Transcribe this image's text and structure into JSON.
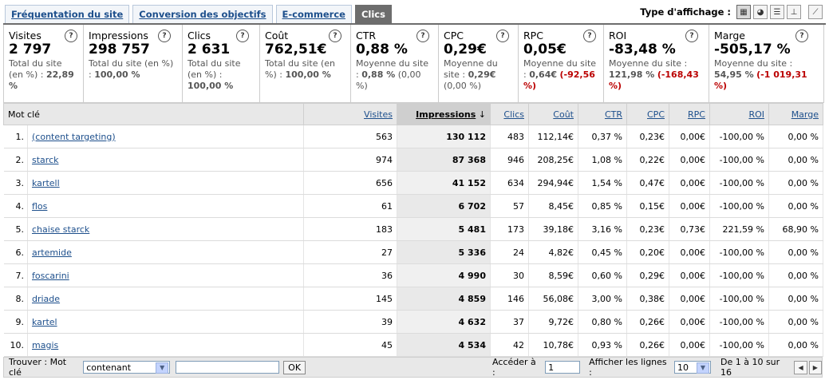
{
  "tabs": [
    {
      "label": "Fréquentation du site",
      "active": false
    },
    {
      "label": "Conversion des objectifs",
      "active": false
    },
    {
      "label": "E-commerce",
      "active": false
    },
    {
      "label": "Clics",
      "active": true
    }
  ],
  "view_type": {
    "label": "Type d'affichage :",
    "icons": [
      "table-view-icon",
      "pie-view-icon",
      "performance-view-icon",
      "comparison-view-icon",
      "pivot-line-icon"
    ]
  },
  "metrics": [
    {
      "name": "Visites",
      "value": "2 797",
      "sub1": "Total du site",
      "sub2": "(en %) :",
      "sub3": "22,89 %",
      "sub4": ""
    },
    {
      "name": "Impressions",
      "value": "298 757",
      "sub1": "Total du site (en %)",
      "sub2": ":",
      "sub3": "100,00 %",
      "sub4": ""
    },
    {
      "name": "Clics",
      "value": "2 631",
      "sub1": "Total du site",
      "sub2": "(en %) :",
      "sub3": "100,00 %",
      "sub4": ""
    },
    {
      "name": "Coût",
      "value": "762,51€",
      "sub1": "Total du site (en",
      "sub2": "%) :",
      "sub3": "100,00 %",
      "sub4": ""
    },
    {
      "name": "CTR",
      "value": "0,88 %",
      "sub1": "Moyenne du site :",
      "sub2": "",
      "sub3": "0,88 %",
      "sub4": "(0,00 %)"
    },
    {
      "name": "CPC",
      "value": "0,29€",
      "sub1": "Moyenne du",
      "sub2": "site :",
      "sub3": "0,29€",
      "sub4": "(0,00 %)"
    },
    {
      "name": "RPC",
      "value": "0,05€",
      "sub1": "Moyenne du site",
      "sub2": ":",
      "sub3": "0,64€",
      "sub4": "(-92,56 %)"
    },
    {
      "name": "ROI",
      "value": "-83,48 %",
      "sub1": "Moyenne du site :",
      "sub2": "",
      "sub3": "121,98 %",
      "sub4": "(-168,43 %)"
    },
    {
      "name": "Marge",
      "value": "-505,17 %",
      "sub1": "Moyenne du site :",
      "sub2": "",
      "sub3": "54,95 %",
      "sub4": "(-1 019,31 %)"
    }
  ],
  "table": {
    "headers": [
      "Mot clé",
      "Visites",
      "Impressions",
      "Clics",
      "Coût",
      "CTR",
      "CPC",
      "RPC",
      "ROI",
      "Marge"
    ],
    "sort_arrow": "↓",
    "rows": [
      {
        "idx": "1.",
        "kw": "(content targeting)",
        "visites": "563",
        "impressions": "130 112",
        "clics": "483",
        "cout": "112,14€",
        "ctr": "0,37 %",
        "cpc": "0,23€",
        "rpc": "0,00€",
        "roi": "-100,00 %",
        "marge": "0,00 %"
      },
      {
        "idx": "2.",
        "kw": "starck",
        "visites": "974",
        "impressions": "87 368",
        "clics": "946",
        "cout": "208,25€",
        "ctr": "1,08 %",
        "cpc": "0,22€",
        "rpc": "0,00€",
        "roi": "-100,00 %",
        "marge": "0,00 %"
      },
      {
        "idx": "3.",
        "kw": "kartell",
        "visites": "656",
        "impressions": "41 152",
        "clics": "634",
        "cout": "294,94€",
        "ctr": "1,54 %",
        "cpc": "0,47€",
        "rpc": "0,00€",
        "roi": "-100,00 %",
        "marge": "0,00 %"
      },
      {
        "idx": "4.",
        "kw": "flos",
        "visites": "61",
        "impressions": "6 702",
        "clics": "57",
        "cout": "8,45€",
        "ctr": "0,85 %",
        "cpc": "0,15€",
        "rpc": "0,00€",
        "roi": "-100,00 %",
        "marge": "0,00 %"
      },
      {
        "idx": "5.",
        "kw": "chaise starck",
        "visites": "183",
        "impressions": "5 481",
        "clics": "173",
        "cout": "39,18€",
        "ctr": "3,16 %",
        "cpc": "0,23€",
        "rpc": "0,73€",
        "roi": "221,59 %",
        "marge": "68,90 %"
      },
      {
        "idx": "6.",
        "kw": "artemide",
        "visites": "27",
        "impressions": "5 336",
        "clics": "24",
        "cout": "4,82€",
        "ctr": "0,45 %",
        "cpc": "0,20€",
        "rpc": "0,00€",
        "roi": "-100,00 %",
        "marge": "0,00 %"
      },
      {
        "idx": "7.",
        "kw": "foscarini",
        "visites": "36",
        "impressions": "4 990",
        "clics": "30",
        "cout": "8,59€",
        "ctr": "0,60 %",
        "cpc": "0,29€",
        "rpc": "0,00€",
        "roi": "-100,00 %",
        "marge": "0,00 %"
      },
      {
        "idx": "8.",
        "kw": "driade",
        "visites": "145",
        "impressions": "4 859",
        "clics": "146",
        "cout": "56,08€",
        "ctr": "3,00 %",
        "cpc": "0,38€",
        "rpc": "0,00€",
        "roi": "-100,00 %",
        "marge": "0,00 %"
      },
      {
        "idx": "9.",
        "kw": "kartel",
        "visites": "39",
        "impressions": "4 632",
        "clics": "37",
        "cout": "9,72€",
        "ctr": "0,80 %",
        "cpc": "0,26€",
        "rpc": "0,00€",
        "roi": "-100,00 %",
        "marge": "0,00 %"
      },
      {
        "idx": "10.",
        "kw": "magis",
        "visites": "45",
        "impressions": "4 534",
        "clics": "42",
        "cout": "10,78€",
        "ctr": "0,93 %",
        "cpc": "0,26€",
        "rpc": "0,00€",
        "roi": "-100,00 %",
        "marge": "0,00 %"
      }
    ]
  },
  "footer": {
    "find_label": "Trouver : Mot clé",
    "filter_select": "contenant",
    "search_value": "",
    "ok_label": "OK",
    "goto_label": "Accéder à :",
    "goto_value": "1",
    "rows_label": "Afficher les lignes :",
    "rows_value": "10",
    "range_text": "De 1 à 10 sur 16"
  },
  "colors": {
    "link": "#1d4f8c",
    "active_tab": "#6d6d6d",
    "negative": "#b00000"
  }
}
